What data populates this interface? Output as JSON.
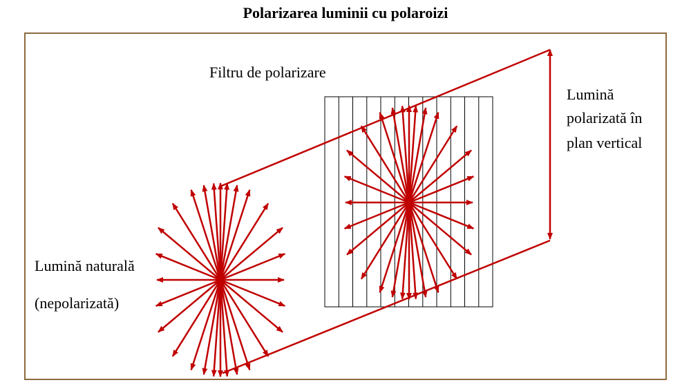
{
  "title": "Polarizarea luminii cu polaroizi",
  "labels": {
    "filter": "Filtru de polarizare",
    "polarized_line1": "Lumină",
    "polarized_line2": "polarizată în",
    "polarized_line3": "plan vertical",
    "natural_line1": "Lumină naturală",
    "natural_line2": "(nepolarizată)"
  },
  "colors": {
    "ray": "#c00000",
    "frame": "#8c6b3e",
    "grid": "#000000"
  },
  "icons": {
    "ray_arrow": "arrowhead"
  }
}
